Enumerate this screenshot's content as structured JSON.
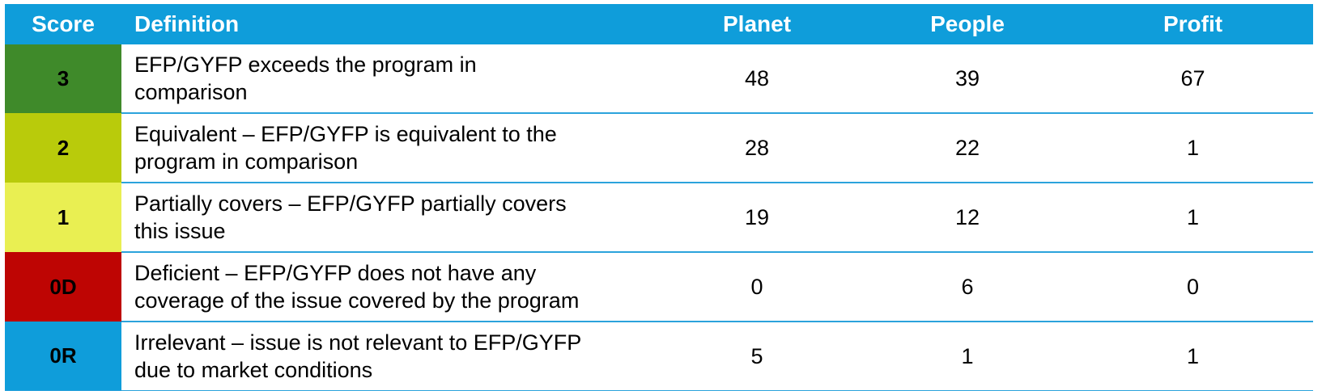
{
  "colors": {
    "header_bg": "#0F9DDA",
    "header_text": "#FFFFFF",
    "separator_line": "#2BA3DC",
    "body_text": "#000000",
    "score_green": "#3F8A2A",
    "score_yellow_green": "#B9CB0B",
    "score_yellow": "#E9EF52",
    "score_red": "#BE0503",
    "score_blue": "#0F9DDA"
  },
  "table": {
    "header": {
      "score": "Score",
      "definition": "Definition",
      "planet": "Planet",
      "people": "People",
      "profit": "Profit"
    },
    "rows": [
      {
        "score": "3",
        "score_color": "#3F8A2A",
        "definition": "EFP/GYFP exceeds the program in comparison",
        "definition_lines": [
          "EFP/GYFP exceeds the program in",
          "comparison"
        ],
        "planet": "48",
        "people": "39",
        "profit": "67"
      },
      {
        "score": "2",
        "score_color": "#B9CB0B",
        "definition": "Equivalent – EFP/GYFP is equivalent to the program in comparison",
        "definition_lines": [
          "Equivalent – EFP/GYFP is equivalent to the",
          "program in comparison"
        ],
        "planet": "28",
        "people": "22",
        "profit": "1"
      },
      {
        "score": "1",
        "score_color": "#E9EF52",
        "definition": "Partially covers – EFP/GYFP partially covers this issue",
        "definition_lines": [
          "Partially covers – EFP/GYFP partially covers",
          "this issue"
        ],
        "planet": "19",
        "people": "12",
        "profit": "1"
      },
      {
        "score": "0D",
        "score_color": "#BE0503",
        "definition": "Deficient – EFP/GYFP does not have any coverage of the issue covered by the program",
        "definition_lines": [
          "Deficient – EFP/GYFP does not have any",
          "coverage of the issue covered by the program"
        ],
        "planet": "0",
        "people": "6",
        "profit": "0"
      },
      {
        "score": "0R",
        "score_color": "#0F9DDA",
        "definition": "Irrelevant – issue is not relevant to EFP/GYFP due to market conditions",
        "definition_lines": [
          "Irrelevant – issue is not relevant to EFP/GYFP",
          "due to market conditions"
        ],
        "planet": "5",
        "people": "1",
        "profit": "1"
      }
    ]
  }
}
